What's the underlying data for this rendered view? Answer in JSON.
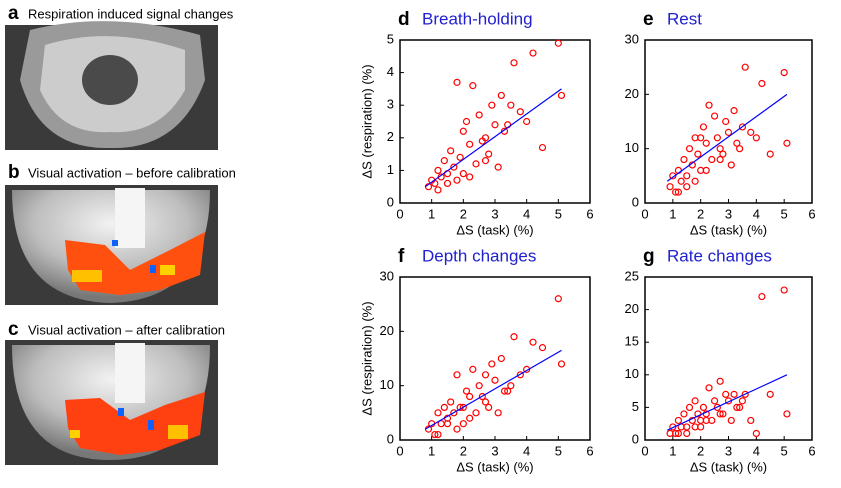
{
  "image_panels": [
    {
      "letter": "a",
      "caption": "Respiration induced signal changes"
    },
    {
      "letter": "b",
      "caption": "Visual activation – before calibration"
    },
    {
      "letter": "c",
      "caption": "Visual activation – after calibration"
    }
  ],
  "chart_data": [
    {
      "type": "scatter",
      "letter": "d",
      "title": "Breath-holding",
      "xlabel": "ΔS (task) (%)",
      "ylabel": "ΔS (respiration) (%)",
      "xlim": [
        0,
        6
      ],
      "ylim": [
        0,
        5
      ],
      "xticks": [
        0,
        1,
        2,
        3,
        4,
        5,
        6
      ],
      "yticks": [
        0,
        1,
        2,
        3,
        4,
        5
      ],
      "color": "#ff0000",
      "fit_color": "#0000ff",
      "x": [
        0.9,
        1.0,
        1.1,
        1.2,
        1.3,
        1.4,
        1.5,
        1.6,
        1.7,
        1.8,
        1.9,
        2.0,
        2.1,
        2.2,
        2.3,
        2.4,
        2.5,
        2.6,
        2.7,
        2.8,
        2.9,
        3.0,
        3.1,
        3.2,
        3.3,
        3.5,
        3.6,
        3.8,
        4.0,
        4.2,
        4.5,
        5.0,
        5.1,
        1.8,
        2.2,
        1.5,
        2.7,
        3.4,
        1.2,
        2.0
      ],
      "values": [
        0.5,
        0.7,
        0.6,
        1.0,
        0.8,
        1.3,
        0.9,
        1.6,
        1.1,
        3.7,
        1.4,
        0.9,
        2.5,
        1.8,
        3.6,
        1.2,
        2.7,
        1.9,
        2.0,
        1.5,
        3.0,
        2.4,
        1.1,
        3.3,
        2.2,
        3.0,
        4.3,
        2.8,
        2.5,
        4.6,
        1.7,
        4.9,
        3.3,
        0.7,
        0.8,
        0.6,
        1.3,
        2.4,
        0.4,
        2.2
      ],
      "fit_line": {
        "x": [
          0.8,
          5.1
        ],
        "y": [
          0.5,
          3.5
        ]
      }
    },
    {
      "type": "scatter",
      "letter": "e",
      "title": "Rest",
      "xlabel": "ΔS (task) (%)",
      "xlim": [
        0,
        6
      ],
      "ylim": [
        0,
        30
      ],
      "xticks": [
        0,
        1,
        2,
        3,
        4,
        5,
        6
      ],
      "yticks": [
        0,
        10,
        20,
        30
      ],
      "color": "#ff0000",
      "fit_color": "#0000ff",
      "x": [
        0.9,
        1.0,
        1.1,
        1.2,
        1.3,
        1.4,
        1.5,
        1.6,
        1.7,
        1.8,
        1.9,
        2.0,
        2.1,
        2.2,
        2.3,
        2.4,
        2.5,
        2.6,
        2.7,
        2.8,
        2.9,
        3.0,
        3.1,
        3.2,
        3.3,
        3.5,
        3.6,
        3.8,
        4.0,
        4.2,
        4.5,
        5.0,
        5.1,
        1.8,
        2.2,
        1.5,
        2.7,
        3.4,
        1.2,
        2.0
      ],
      "values": [
        3,
        5,
        2,
        6,
        4,
        8,
        5,
        10,
        7,
        12,
        9,
        6,
        14,
        11,
        18,
        8,
        16,
        12,
        10,
        9,
        15,
        13,
        7,
        17,
        11,
        14,
        25,
        13,
        12,
        22,
        9,
        24,
        11,
        4,
        6,
        3,
        8,
        10,
        2,
        12
      ],
      "fit_line": {
        "x": [
          0.8,
          5.1
        ],
        "y": [
          4,
          20
        ]
      }
    },
    {
      "type": "scatter",
      "letter": "f",
      "title": "Depth changes",
      "xlabel": "ΔS (task) (%)",
      "ylabel": "ΔS (respiration) (%)",
      "xlim": [
        0,
        6
      ],
      "ylim": [
        0,
        30
      ],
      "xticks": [
        0,
        1,
        2,
        3,
        4,
        5,
        6
      ],
      "yticks": [
        0,
        10,
        20,
        30
      ],
      "color": "#ff0000",
      "fit_color": "#0000ff",
      "x": [
        0.9,
        1.0,
        1.1,
        1.2,
        1.3,
        1.4,
        1.5,
        1.6,
        1.7,
        1.8,
        1.9,
        2.0,
        2.1,
        2.2,
        2.3,
        2.4,
        2.5,
        2.6,
        2.7,
        2.8,
        2.9,
        3.0,
        3.1,
        3.2,
        3.3,
        3.5,
        3.6,
        3.8,
        4.0,
        4.2,
        4.5,
        5.0,
        5.1,
        1.8,
        2.2,
        1.5,
        2.7,
        3.4,
        1.2,
        2.0
      ],
      "values": [
        2,
        3,
        1,
        5,
        3,
        6,
        4,
        7,
        5,
        12,
        6,
        3,
        9,
        8,
        13,
        5,
        10,
        8,
        12,
        6,
        14,
        11,
        5,
        15,
        9,
        10,
        19,
        12,
        13,
        18,
        17,
        26,
        14,
        2,
        4,
        3,
        7,
        9,
        1,
        6
      ],
      "fit_line": {
        "x": [
          0.8,
          5.1
        ],
        "y": [
          2,
          16.5
        ]
      }
    },
    {
      "type": "scatter",
      "letter": "g",
      "title": "Rate changes",
      "xlabel": "ΔS (task) (%)",
      "xlim": [
        0,
        6
      ],
      "ylim": [
        0,
        25
      ],
      "xticks": [
        0,
        1,
        2,
        3,
        4,
        5,
        6
      ],
      "yticks": [
        0,
        5,
        10,
        15,
        20,
        25
      ],
      "color": "#ff0000",
      "fit_color": "#0000ff",
      "x": [
        0.9,
        1.0,
        1.1,
        1.2,
        1.3,
        1.4,
        1.5,
        1.6,
        1.7,
        1.8,
        1.9,
        2.0,
        2.1,
        2.2,
        2.3,
        2.4,
        2.5,
        2.6,
        2.7,
        2.8,
        2.9,
        3.0,
        3.1,
        3.2,
        3.3,
        3.5,
        3.6,
        3.8,
        4.0,
        4.2,
        4.5,
        5.0,
        5.1,
        1.8,
        2.2,
        1.5,
        2.7,
        3.4,
        1.2,
        2.0
      ],
      "values": [
        1,
        2,
        1,
        3,
        2,
        4,
        2,
        5,
        3,
        6,
        4,
        2,
        5,
        4,
        8,
        3,
        6,
        5,
        9,
        4,
        7,
        6,
        3,
        7,
        5,
        6,
        7,
        3,
        1,
        22,
        7,
        23,
        4,
        2,
        3,
        1,
        4,
        5,
        1,
        3
      ],
      "fit_line": {
        "x": [
          0.8,
          5.1
        ],
        "y": [
          1.5,
          10
        ]
      }
    }
  ]
}
